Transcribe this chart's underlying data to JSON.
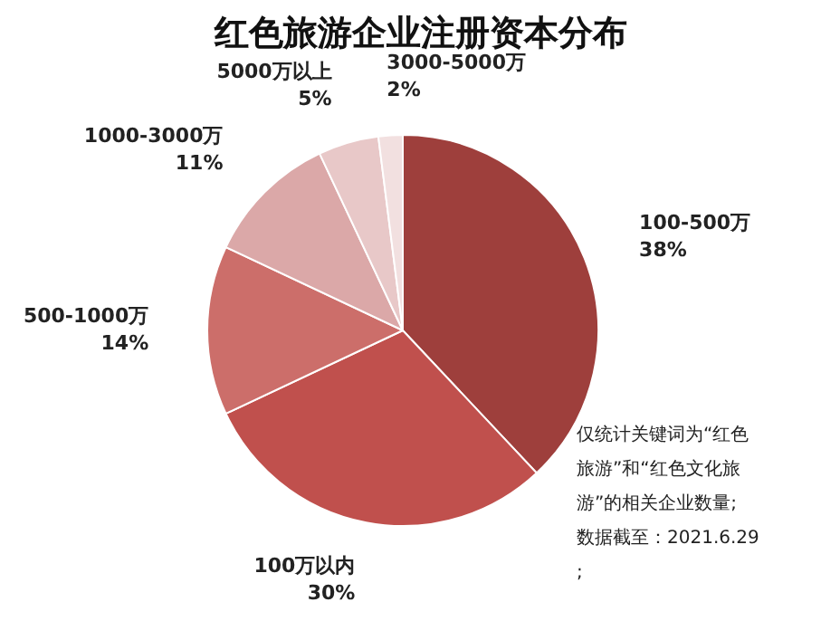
{
  "chart_data": {
    "type": "pie",
    "title": "红色旅游企业注册资本分布",
    "categories": [
      "100-500万",
      "100万以内",
      "500-1000万",
      "1000-3000万",
      "5000万以上",
      "3000-5000万"
    ],
    "values": [
      38,
      30,
      14,
      11,
      5,
      2
    ],
    "colors": [
      "#9e3f3c",
      "#c0504d",
      "#cc6e6a",
      "#dba8a8",
      "#e8c8c8",
      "#f2e0e0"
    ],
    "value_labels": [
      "38%",
      "30%",
      "14%",
      "11%",
      "5%",
      "2%"
    ],
    "annotations": [
      "仅统计关键词为“红色旅游”和“红色文化旅游”的相关企业数量;",
      "数据截至：2021.6.29;"
    ]
  }
}
